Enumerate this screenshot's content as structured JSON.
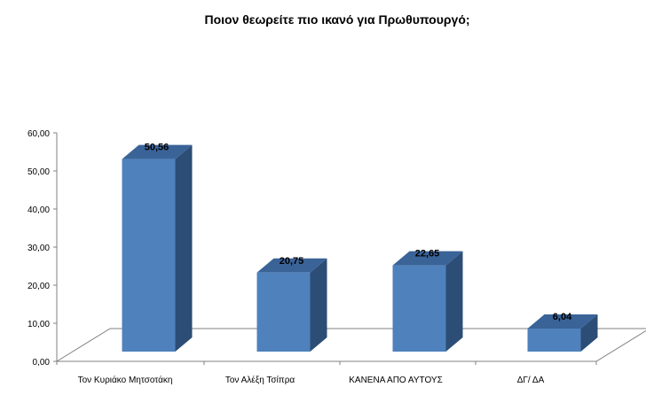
{
  "chart_data": {
    "type": "bar",
    "title": "Ποιον θεωρείτε πιο ικανό για Πρωθυπουργό;",
    "xlabel": "",
    "ylabel": "",
    "categories": [
      "Τον Κυριάκο Μητσοτάκη",
      "Τον Αλέξη Τσίπρα",
      "ΚΑΝΕΝΑ ΑΠΟ ΑΥΤΟΥΣ",
      "ΔΓ/ ΔΑ"
    ],
    "values": [
      50.56,
      20.75,
      22.65,
      6.04
    ],
    "value_labels": [
      "50,56",
      "20,75",
      "22,65",
      "6,04"
    ],
    "ylim": [
      0,
      60
    ],
    "yticks": [
      0,
      10,
      20,
      30,
      40,
      50,
      60
    ],
    "ytick_labels": [
      "0,00",
      "10,00",
      "20,00",
      "30,00",
      "40,00",
      "50,00",
      "60,00"
    ],
    "grid": false,
    "legend": "none",
    "bar_style": "3d",
    "colors": {
      "bar_front": "#4f81bd",
      "bar_side": "#2c4d75",
      "bar_top": "#3a6398",
      "floor_stroke": "#808080",
      "axis": "#808080"
    }
  }
}
